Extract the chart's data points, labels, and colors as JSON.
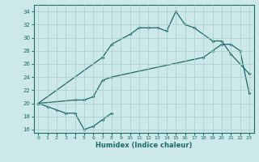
{
  "xlabel": "Humidex (Indice chaleur)",
  "xlim": [
    -0.5,
    23.5
  ],
  "ylim": [
    15.5,
    35
  ],
  "yticks": [
    16,
    18,
    20,
    22,
    24,
    26,
    28,
    30,
    32,
    34
  ],
  "xticks": [
    0,
    1,
    2,
    3,
    4,
    5,
    6,
    7,
    8,
    9,
    10,
    11,
    12,
    13,
    14,
    15,
    16,
    17,
    18,
    19,
    20,
    21,
    22,
    23
  ],
  "bg_color": "#cce8e8",
  "grid_color": "#aacccc",
  "line_color": "#1a6b6b",
  "line1_x": [
    0,
    1,
    2,
    3,
    4,
    5,
    6,
    7,
    8
  ],
  "line1_y": [
    20,
    19.5,
    19.0,
    18.5,
    18.5,
    16,
    16.5,
    17.5,
    18.5
  ],
  "line2_x": [
    0,
    7,
    8,
    10,
    11,
    12,
    13,
    14,
    15,
    16,
    17,
    19,
    20,
    21,
    23
  ],
  "line2_y": [
    20,
    27,
    29,
    30.5,
    31.5,
    31.5,
    31.5,
    31,
    34,
    32,
    31.5,
    29.5,
    29.5,
    27.5,
    24.5
  ],
  "line3_x": [
    0,
    4,
    5,
    6,
    7,
    8,
    18,
    19,
    20,
    21,
    22,
    23
  ],
  "line3_y": [
    20,
    20.5,
    20.5,
    21,
    23.5,
    24,
    27,
    28,
    29,
    29,
    28,
    21.5
  ]
}
